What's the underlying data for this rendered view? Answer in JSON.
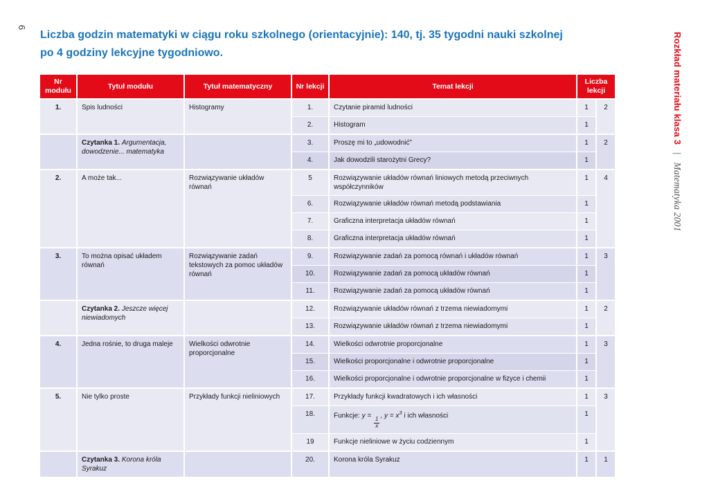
{
  "page": {
    "number": "6"
  },
  "title": {
    "prefix": "Liczba godzin matematyki w ciągu roku szkolnego (orientacyjnie): ",
    "number": "140",
    "suffix": ", tj. 35 tygodni nauki szkolnej",
    "line2": "po 4 godziny lekcyjne tygodniowo."
  },
  "side": {
    "title": "Rozkład materiału klasa 3",
    "separator": "|",
    "subtitle": "Matematyka 2001"
  },
  "colors": {
    "header_red": "#e30b17",
    "title_blue": "#1b74b8",
    "row_light": "#e9e9f4",
    "row_dark": "#dcddee"
  },
  "table": {
    "headers": [
      "Nr modułu",
      "Tytuł modułu",
      "Tytuł matematyczny",
      "Nr lekcji",
      "Temat lekcji",
      "Liczba lekcji"
    ],
    "groups": [
      {
        "module_no": "1.",
        "module_title": "Spis ludności",
        "math_title": "Histogramy",
        "total": "2",
        "lessons": [
          {
            "no": "1.",
            "topic": "Czytanie piramid ludności",
            "count": "1"
          },
          {
            "no": "2.",
            "topic": "Histogram",
            "count": "1"
          }
        ]
      },
      {
        "module_no": "",
        "czytanka_label": "Czytanka 1.",
        "czytanka_text": "Argumentacja, dowodzenie... matematyka",
        "math_title": "",
        "total": "2",
        "lessons": [
          {
            "no": "3.",
            "topic": "Proszę mi to „udowodnić”",
            "count": "1"
          },
          {
            "no": "4.",
            "topic": "Jak dowodzili starożytni Grecy?",
            "count": "1"
          }
        ]
      },
      {
        "module_no": "2.",
        "module_title": "A może tak...",
        "math_title": "Rozwiązywanie układów równań",
        "total": "4",
        "lessons": [
          {
            "no": "5",
            "topic": "Rozwiązywanie układów równań liniowych metodą przeciwnych współczynników",
            "count": "1"
          },
          {
            "no": "6.",
            "topic": "Rozwiązywanie układów równań metodą podstawiania",
            "count": "1"
          },
          {
            "no": "7.",
            "topic": "Graficzna interpretacja układów równań",
            "count": "1"
          },
          {
            "no": "8.",
            "topic": "Graficzna interpretacja układów równań",
            "count": "1"
          }
        ]
      },
      {
        "module_no": "3.",
        "module_title": "To można opisać układem równań",
        "math_title": "Rozwiązywanie zadań tekstowych za pomoc układów równań",
        "total": "3",
        "lessons": [
          {
            "no": "9.",
            "topic": "Rozwiązywanie zadań za pomocą równań i układów równań",
            "count": "1"
          },
          {
            "no": "10.",
            "topic": "Rozwiązywanie zadań za pomocą układów równań",
            "count": "1"
          },
          {
            "no": "11.",
            "topic": "Rozwiązywanie zadań za pomocą układów równań",
            "count": "1"
          }
        ]
      },
      {
        "module_no": "",
        "czytanka_label": "Czytanka 2.",
        "czytanka_text": "Jeszcze więcej niewiadomych",
        "math_title": "",
        "total": "2",
        "lessons": [
          {
            "no": "12.",
            "topic": "Rozwiązywanie układów równań z trzema niewiadomymi",
            "count": "1"
          },
          {
            "no": "13.",
            "topic": "Rozwiązywanie układów równań z trzema niewiadomymi",
            "count": "1"
          }
        ]
      },
      {
        "module_no": "4.",
        "module_title": "Jedna rośnie, to druga maleje",
        "math_title": "Wielkości odwrotnie proporcjonalne",
        "total": "3",
        "lessons": [
          {
            "no": "14.",
            "topic": "Wielkości odwrotnie proporcjonalne",
            "count": "1"
          },
          {
            "no": "15.",
            "topic": "Wielkości proporcjonalne i odwrotnie proporcjonalne",
            "count": "1"
          },
          {
            "no": "16.",
            "topic": "Wielkości proporcjonalne i odwrotnie proporcjonalne w fizyce i chemii",
            "count": "1"
          }
        ]
      },
      {
        "module_no": "5.",
        "module_title": "Nie tylko proste",
        "math_title": "Przykłady funkcji nieliniowych",
        "total": "3",
        "lessons": [
          {
            "no": "17.",
            "topic": "Przykłady funkcji kwadratowych i ich własności",
            "count": "1"
          },
          {
            "no": "18.",
            "formula": {
              "prefix": "Funkcje: ",
              "lead": "y = ",
              "frac_num": "1",
              "frac_den": "x",
              "middle": ",  y = x",
              "sup": "3",
              "suffix": " i ich własności"
            },
            "count": "1"
          },
          {
            "no": "19",
            "topic": "Funkcje nieliniowe w życiu codziennym",
            "count": "1"
          }
        ]
      },
      {
        "module_no": "",
        "czytanka_label": "Czytanka 3.",
        "czytanka_text": "Korona króla Syrakuz",
        "math_title": "",
        "total": "1",
        "lessons": [
          {
            "no": "20.",
            "topic": "Korona króla Syrakuz",
            "count": "1"
          }
        ]
      }
    ]
  }
}
